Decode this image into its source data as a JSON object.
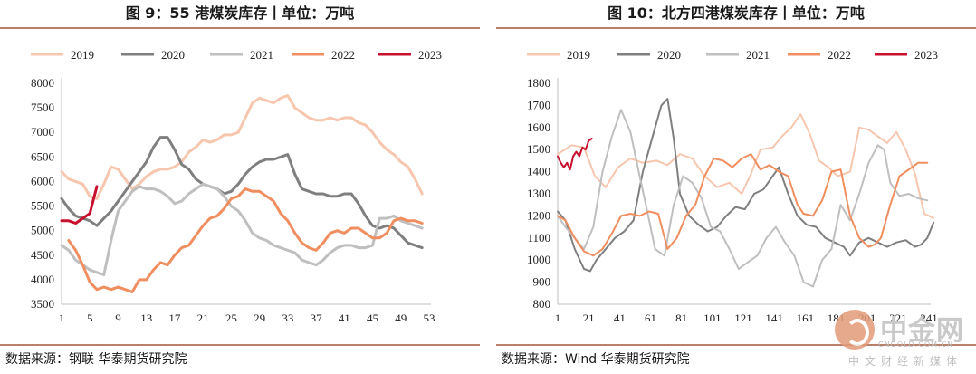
{
  "charts": [
    {
      "title": "图 9：55 港煤炭库存丨单位：万吨",
      "source": "数据来源：钢联 华泰期货研究院",
      "chart_data": {
        "type": "line",
        "xlabel": "",
        "ylabel": "",
        "ylim": [
          3500,
          8000
        ],
        "yticks": [
          3500,
          4000,
          4500,
          5000,
          5500,
          6000,
          6500,
          7000,
          7500,
          8000
        ],
        "xlim": [
          1,
          53
        ],
        "xticks": [
          1,
          5,
          9,
          13,
          17,
          21,
          25,
          29,
          33,
          37,
          41,
          45,
          49,
          53
        ],
        "grid": false,
        "legend": "top",
        "series": [
          {
            "name": "2019",
            "color": "#f6c6ae",
            "width": 3,
            "x": [
              1,
              2,
              3,
              4,
              5,
              6,
              7,
              8,
              9,
              10,
              11,
              12,
              13,
              14,
              15,
              16,
              17,
              18,
              19,
              20,
              21,
              22,
              23,
              24,
              25,
              26,
              27,
              28,
              29,
              30,
              31,
              32,
              33,
              34,
              35,
              36,
              37,
              38,
              39,
              40,
              41,
              42,
              43,
              44,
              45,
              46,
              47,
              48,
              49,
              50,
              51,
              52
            ],
            "y": [
              6200,
              6050,
              6000,
              5950,
              5700,
              5650,
              5950,
              6300,
              6250,
              6050,
              5850,
              5950,
              6100,
              6200,
              6250,
              6250,
              6300,
              6400,
              6600,
              6700,
              6850,
              6800,
              6850,
              6950,
              6950,
              7000,
              7300,
              7600,
              7700,
              7650,
              7600,
              7700,
              7750,
              7500,
              7400,
              7300,
              7250,
              7250,
              7300,
              7250,
              7300,
              7300,
              7200,
              7150,
              7000,
              6800,
              6650,
              6550,
              6400,
              6300,
              6050,
              5750
            ]
          },
          {
            "name": "2020",
            "color": "#7f7f7f",
            "width": 3,
            "x": [
              1,
              2,
              3,
              4,
              5,
              6,
              7,
              8,
              9,
              10,
              11,
              12,
              13,
              14,
              15,
              16,
              17,
              18,
              19,
              20,
              21,
              22,
              23,
              24,
              25,
              26,
              27,
              28,
              29,
              30,
              31,
              32,
              33,
              34,
              35,
              36,
              37,
              38,
              39,
              40,
              41,
              42,
              43,
              44,
              45,
              46,
              47,
              48,
              49,
              50,
              51,
              52
            ],
            "y": [
              5650,
              5450,
              5300,
              5250,
              5200,
              5100,
              5250,
              5400,
              5600,
              5800,
              6000,
              6200,
              6400,
              6700,
              6900,
              6900,
              6650,
              6350,
              6250,
              6050,
              5950,
              5900,
              5850,
              5750,
              5800,
              5950,
              6150,
              6300,
              6400,
              6450,
              6450,
              6500,
              6550,
              6150,
              5850,
              5800,
              5750,
              5750,
              5700,
              5700,
              5750,
              5750,
              5550,
              5300,
              5100,
              5050,
              5100,
              5050,
              4900,
              4750,
              4700,
              4650
            ]
          },
          {
            "name": "2021",
            "color": "#bfbfbf",
            "width": 3,
            "x": [
              1,
              2,
              3,
              4,
              5,
              6,
              7,
              8,
              9,
              10,
              11,
              12,
              13,
              14,
              15,
              16,
              17,
              18,
              19,
              20,
              21,
              22,
              23,
              24,
              25,
              26,
              27,
              28,
              29,
              30,
              31,
              32,
              33,
              34,
              35,
              36,
              37,
              38,
              39,
              40,
              41,
              42,
              43,
              44,
              45,
              46,
              47,
              48,
              49,
              50,
              51,
              52
            ],
            "y": [
              4700,
              4600,
              4400,
              4300,
              4200,
              4150,
              4100,
              4800,
              5400,
              5600,
              5800,
              5900,
              5850,
              5850,
              5800,
              5700,
              5550,
              5600,
              5750,
              5850,
              5950,
              5900,
              5850,
              5700,
              5500,
              5400,
              5200,
              4950,
              4850,
              4800,
              4700,
              4650,
              4600,
              4550,
              4400,
              4350,
              4300,
              4400,
              4550,
              4650,
              4700,
              4700,
              4650,
              4650,
              4700,
              5250,
              5250,
              5300,
              5200,
              5150,
              5100,
              5050
            ]
          },
          {
            "name": "2022",
            "color": "#f08e5f",
            "width": 3,
            "x": [
              2,
              3,
              4,
              5,
              6,
              7,
              8,
              9,
              10,
              11,
              12,
              13,
              14,
              15,
              16,
              17,
              18,
              19,
              20,
              21,
              22,
              23,
              24,
              25,
              26,
              27,
              28,
              29,
              30,
              31,
              32,
              33,
              34,
              35,
              36,
              37,
              38,
              39,
              40,
              41,
              42,
              43,
              44,
              45,
              46,
              47,
              48,
              49,
              50,
              51,
              52
            ],
            "y": [
              4800,
              4600,
              4300,
              3950,
              3800,
              3850,
              3800,
              3850,
              3800,
              3750,
              4000,
              4000,
              4200,
              4350,
              4300,
              4500,
              4650,
              4700,
              4900,
              5100,
              5250,
              5300,
              5450,
              5650,
              5700,
              5850,
              5800,
              5800,
              5700,
              5600,
              5350,
              5200,
              4950,
              4750,
              4650,
              4600,
              4750,
              4950,
              5000,
              4950,
              5050,
              5050,
              4950,
              4850,
              4850,
              4950,
              5200,
              5250,
              5200,
              5200,
              5150
            ]
          },
          {
            "name": "2023",
            "color": "#c8102e",
            "width": 3,
            "x": [
              1,
              2,
              3,
              4,
              5,
              6
            ],
            "y": [
              5200,
              5200,
              5150,
              5250,
              5350,
              5900
            ]
          }
        ]
      }
    },
    {
      "title": "图 10：北方四港煤炭库存丨单位：万吨",
      "source": "数据来源：Wind 华泰期货研究院",
      "chart_data": {
        "type": "line",
        "xlabel": "",
        "ylabel": "",
        "ylim": [
          800,
          1800
        ],
        "yticks": [
          800,
          900,
          1000,
          1100,
          1200,
          1300,
          1400,
          1500,
          1600,
          1700,
          1800
        ],
        "xlim": [
          1,
          241
        ],
        "xticks": [
          1,
          21,
          41,
          61,
          81,
          101,
          121,
          141,
          161,
          181,
          201,
          221,
          241
        ],
        "grid": false,
        "legend": "top",
        "series": [
          {
            "name": "2019",
            "color": "#f6c6ae",
            "width": 2,
            "x": [
              1,
              10,
              18,
              25,
              32,
              40,
              48,
              56,
              65,
              72,
              80,
              88,
              96,
              104,
              112,
              120,
              126,
              132,
              140,
              146,
              152,
              158,
              164,
              170,
              176,
              182,
              190,
              196,
              202,
              208,
              214,
              220,
              226,
              232,
              238,
              244
            ],
            "y": [
              1480,
              1520,
              1510,
              1380,
              1330,
              1420,
              1460,
              1440,
              1450,
              1430,
              1480,
              1460,
              1380,
              1330,
              1350,
              1300,
              1390,
              1500,
              1510,
              1560,
              1600,
              1660,
              1570,
              1450,
              1420,
              1380,
              1400,
              1600,
              1590,
              1560,
              1530,
              1580,
              1500,
              1390,
              1210,
              1190
            ]
          },
          {
            "name": "2020",
            "color": "#7f7f7f",
            "width": 2,
            "x": [
              1,
              6,
              12,
              18,
              22,
              26,
              32,
              38,
              44,
              50,
              56,
              60,
              64,
              68,
              72,
              76,
              80,
              86,
              92,
              98,
              104,
              110,
              116,
              122,
              128,
              134,
              140,
              144,
              150,
              156,
              162,
              168,
              174,
              180,
              186,
              190,
              196,
              202,
              208,
              214,
              220,
              226,
              232,
              236,
              240,
              244
            ],
            "y": [
              1220,
              1180,
              1050,
              960,
              950,
              1000,
              1050,
              1100,
              1130,
              1180,
              1400,
              1500,
              1600,
              1700,
              1730,
              1550,
              1300,
              1200,
              1160,
              1130,
              1150,
              1200,
              1240,
              1230,
              1300,
              1320,
              1380,
              1420,
              1300,
              1200,
              1160,
              1150,
              1100,
              1080,
              1060,
              1020,
              1080,
              1100,
              1080,
              1060,
              1080,
              1090,
              1060,
              1070,
              1100,
              1170
            ]
          },
          {
            "name": "2021",
            "color": "#bfbfbf",
            "width": 2,
            "x": [
              1,
              6,
              12,
              18,
              24,
              30,
              36,
              42,
              48,
              54,
              58,
              64,
              70,
              76,
              82,
              88,
              94,
              100,
              106,
              112,
              118,
              124,
              130,
              136,
              142,
              148,
              154,
              160,
              166,
              172,
              178,
              184,
              190,
              196,
              202,
              208,
              212,
              216,
              222,
              228,
              234,
              240
            ],
            "y": [
              1200,
              1150,
              1100,
              1050,
              1150,
              1400,
              1560,
              1680,
              1580,
              1380,
              1250,
              1050,
              1020,
              1250,
              1380,
              1350,
              1280,
              1150,
              1130,
              1050,
              960,
              990,
              1020,
              1100,
              1150,
              1080,
              1020,
              900,
              880,
              1000,
              1050,
              1250,
              1180,
              1300,
              1440,
              1520,
              1500,
              1350,
              1290,
              1300,
              1280,
              1270
            ]
          },
          {
            "name": "2022",
            "color": "#f08e5f",
            "width": 2,
            "x": [
              1,
              6,
              12,
              18,
              24,
              30,
              36,
              42,
              48,
              54,
              60,
              66,
              72,
              78,
              84,
              90,
              96,
              102,
              108,
              114,
              120,
              126,
              132,
              138,
              144,
              150,
              156,
              160,
              166,
              172,
              178,
              184,
              190,
              196,
              202,
              206,
              210,
              216,
              222,
              228,
              234,
              240
            ],
            "y": [
              1200,
              1180,
              1100,
              1040,
              1020,
              1050,
              1120,
              1200,
              1210,
              1200,
              1220,
              1210,
              1050,
              1100,
              1200,
              1250,
              1380,
              1460,
              1450,
              1420,
              1460,
              1480,
              1410,
              1430,
              1400,
              1380,
              1250,
              1210,
              1200,
              1270,
              1400,
              1410,
              1200,
              1100,
              1060,
              1070,
              1100,
              1250,
              1380,
              1410,
              1440,
              1440
            ]
          },
          {
            "name": "2023",
            "color": "#c8102e",
            "width": 2,
            "x": [
              1,
              3,
              5,
              7,
              9,
              11,
              13,
              15,
              17,
              19,
              21,
              23
            ],
            "y": [
              1470,
              1440,
              1420,
              1440,
              1410,
              1470,
              1490,
              1470,
              1510,
              1500,
              1540,
              1550
            ]
          }
        ]
      }
    }
  ],
  "watermark": {
    "brand": "中金网",
    "domain": "CNGOLD.COM.CN",
    "caption": "中文财经新媒体"
  }
}
